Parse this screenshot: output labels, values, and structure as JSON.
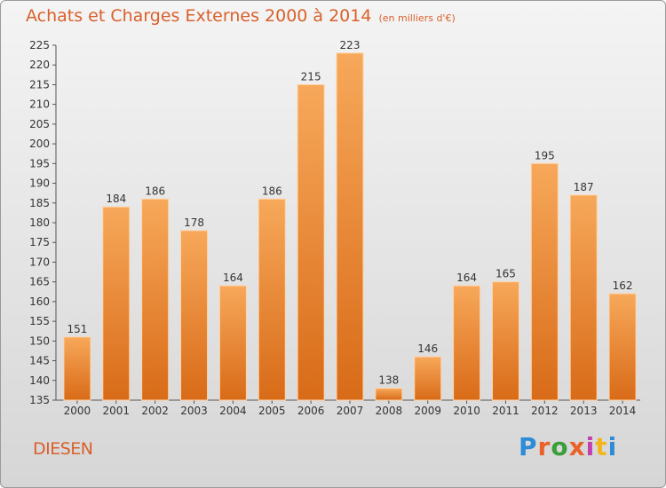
{
  "header": {
    "title": "Achats et Charges Externes 2000 à 2014",
    "unit": "(en milliers d'€)"
  },
  "footer": {
    "place": "DIESEN",
    "brand": "Proxiti",
    "brand_colors": [
      "#2e8bd8",
      "#e9622a",
      "#3a9e3a",
      "#e9622a",
      "#c33fb0",
      "#f2b51d",
      "#2e8bd8"
    ]
  },
  "colors": {
    "bar_top": "#f7a85a",
    "bar_bottom": "#d86b18",
    "bar_edge": "#ffd3a6",
    "accent": "#d9602b"
  },
  "chart_data": {
    "type": "bar",
    "title": "Achats et Charges Externes 2000 à 2014",
    "subtitle": "(en milliers d'€)",
    "categories": [
      "2000",
      "2001",
      "2002",
      "2003",
      "2004",
      "2005",
      "2006",
      "2007",
      "2008",
      "2009",
      "2010",
      "2011",
      "2012",
      "2013",
      "2014"
    ],
    "values": [
      151,
      184,
      186,
      178,
      164,
      186,
      215,
      223,
      138,
      146,
      164,
      165,
      195,
      187,
      162
    ],
    "ylim": [
      135,
      225
    ],
    "ytick_step": 5,
    "grid": false,
    "legend": "none"
  }
}
